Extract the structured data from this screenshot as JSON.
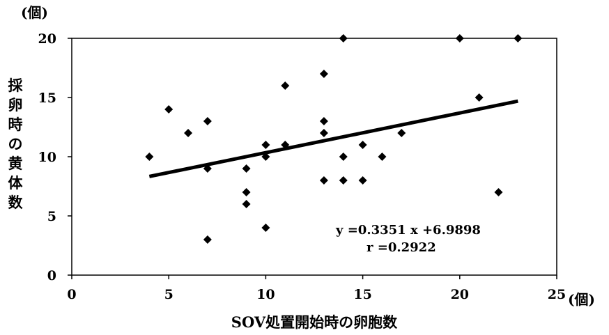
{
  "chart_data": {
    "type": "scatter",
    "title": "",
    "xlabel": "SOV処置開始時の卵胞数",
    "ylabel": "採卵時の黄体数",
    "x_unit": "(個)",
    "y_unit": "(個)",
    "xlim": [
      0,
      25
    ],
    "ylim": [
      0,
      20
    ],
    "x_ticks": [
      "0",
      "5",
      "10",
      "15",
      "20",
      "25"
    ],
    "y_ticks": [
      "0",
      "5",
      "10",
      "15",
      "20"
    ],
    "grid": false,
    "legend": "none",
    "series": [
      {
        "points": [
          {
            "x": 4,
            "y": 10
          },
          {
            "x": 5,
            "y": 14
          },
          {
            "x": 6,
            "y": 12
          },
          {
            "x": 7,
            "y": 13
          },
          {
            "x": 7,
            "y": 9
          },
          {
            "x": 7,
            "y": 3
          },
          {
            "x": 9,
            "y": 9
          },
          {
            "x": 9,
            "y": 7
          },
          {
            "x": 9,
            "y": 6
          },
          {
            "x": 10,
            "y": 11
          },
          {
            "x": 10,
            "y": 10
          },
          {
            "x": 10,
            "y": 4
          },
          {
            "x": 11,
            "y": 16
          },
          {
            "x": 11,
            "y": 11
          },
          {
            "x": 13,
            "y": 17
          },
          {
            "x": 13,
            "y": 13
          },
          {
            "x": 13,
            "y": 12
          },
          {
            "x": 13,
            "y": 8
          },
          {
            "x": 14,
            "y": 20
          },
          {
            "x": 14,
            "y": 10
          },
          {
            "x": 14,
            "y": 8
          },
          {
            "x": 15,
            "y": 11
          },
          {
            "x": 15,
            "y": 8
          },
          {
            "x": 16,
            "y": 10
          },
          {
            "x": 17,
            "y": 12
          },
          {
            "x": 20,
            "y": 20
          },
          {
            "x": 21,
            "y": 15
          },
          {
            "x": 22,
            "y": 7
          },
          {
            "x": 23,
            "y": 20
          }
        ]
      }
    ],
    "trendline": {
      "slope": 0.3351,
      "intercept": 6.9898,
      "x_range": [
        4,
        23
      ]
    },
    "annotations": {
      "equation": "y =0.3351 x +6.9898",
      "r_value": "r =0.2922"
    },
    "marker_color": "#000000",
    "line_color": "#000000"
  }
}
